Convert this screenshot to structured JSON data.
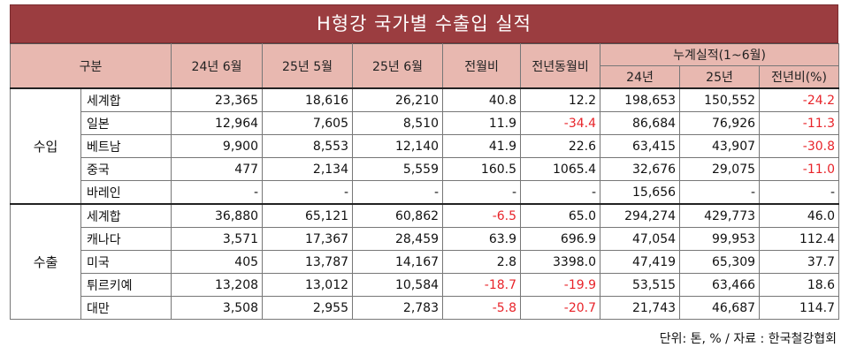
{
  "title": "H형강 국가별 수출입 실적",
  "headers": {
    "category": "구분",
    "col_2406": "24년 6월",
    "col_2505": "25년 5월",
    "col_2506": "25년 6월",
    "col_mom": "전월비",
    "col_yoy": "전년동월비",
    "cumulative": "누계실적(1~6월)",
    "cum_24": "24년",
    "cum_25": "25년",
    "cum_yoy": "전년비(%)"
  },
  "groups": [
    {
      "label": "수입",
      "rows": [
        {
          "name": "세계합",
          "v": [
            "23,365",
            "18,616",
            "26,210",
            "40.8",
            "12.2",
            "198,653",
            "150,552",
            "-24.2"
          ]
        },
        {
          "name": "일본",
          "v": [
            "12,964",
            "7,605",
            "8,510",
            "11.9",
            "-34.4",
            "86,684",
            "76,926",
            "-11.3"
          ]
        },
        {
          "name": "베트남",
          "v": [
            "9,900",
            "8,553",
            "12,140",
            "41.9",
            "22.6",
            "63,415",
            "43,907",
            "-30.8"
          ]
        },
        {
          "name": "중국",
          "v": [
            "477",
            "2,134",
            "5,559",
            "160.5",
            "1065.4",
            "32,676",
            "29,075",
            "-11.0"
          ]
        },
        {
          "name": "바레인",
          "v": [
            "-",
            "-",
            "-",
            "-",
            "-",
            "15,656",
            "-",
            "-"
          ]
        }
      ]
    },
    {
      "label": "수출",
      "rows": [
        {
          "name": "세계합",
          "v": [
            "36,880",
            "65,121",
            "60,862",
            "-6.5",
            "65.0",
            "294,274",
            "429,773",
            "46.0"
          ]
        },
        {
          "name": "캐나다",
          "v": [
            "3,571",
            "17,367",
            "28,459",
            "63.9",
            "696.9",
            "47,054",
            "99,953",
            "112.4"
          ]
        },
        {
          "name": "미국",
          "v": [
            "405",
            "13,787",
            "14,167",
            "2.8",
            "3398.0",
            "47,419",
            "65,309",
            "37.7"
          ]
        },
        {
          "name": "튀르키예",
          "v": [
            "13,208",
            "13,012",
            "10,584",
            "-18.7",
            "-19.9",
            "53,515",
            "63,466",
            "18.6"
          ]
        },
        {
          "name": "대만",
          "v": [
            "3,508",
            "2,955",
            "2,783",
            "-5.8",
            "-20.7",
            "21,743",
            "46,687",
            "114.7"
          ]
        }
      ]
    }
  ],
  "footnote": "단위: 톤, % / 자료 : 한국철강협회",
  "colors": {
    "title_bg": "#9b3d40",
    "header_bg": "#e8b8b0",
    "negative": "#e8242a"
  }
}
